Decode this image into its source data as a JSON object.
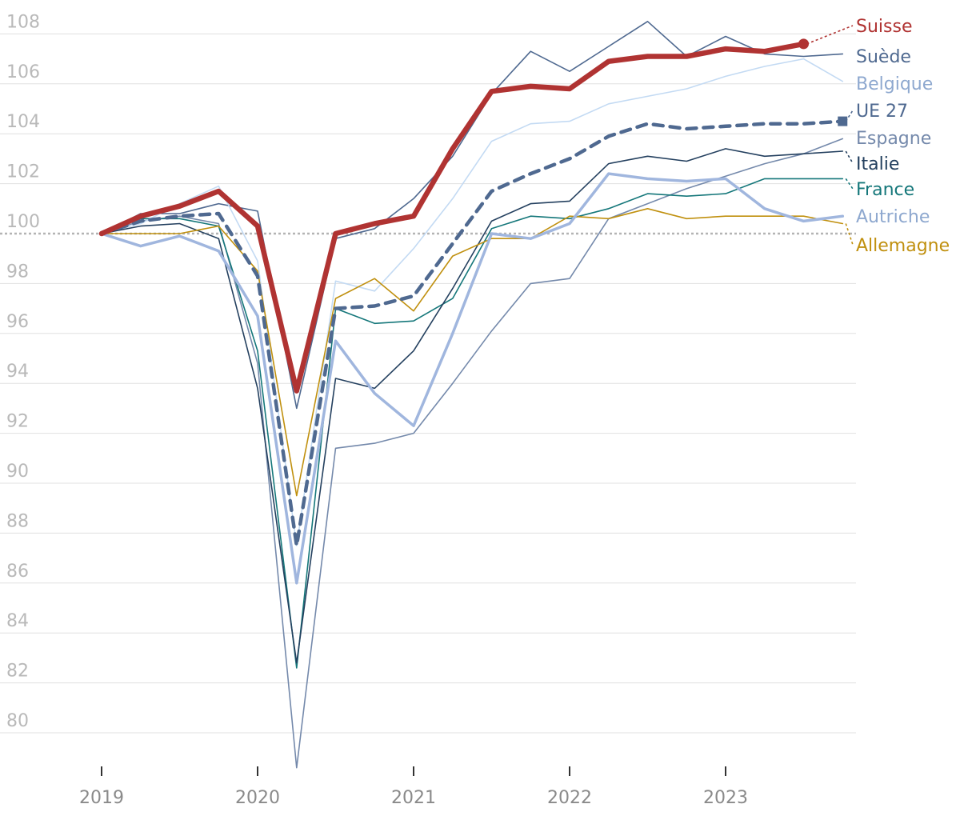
{
  "chart_data": {
    "type": "line",
    "title": "",
    "xlabel": "",
    "ylabel": "",
    "ylim": [
      78.5,
      109
    ],
    "yticks": [
      80,
      82,
      84,
      86,
      88,
      90,
      92,
      94,
      96,
      98,
      100,
      102,
      104,
      106,
      108
    ],
    "x_year_labels": [
      "2019",
      "2020",
      "2021",
      "2022",
      "2023"
    ],
    "x": [
      "2019Q1",
      "2019Q2",
      "2019Q3",
      "2019Q4",
      "2020Q1",
      "2020Q2",
      "2020Q3",
      "2020Q4",
      "2021Q1",
      "2021Q2",
      "2021Q3",
      "2021Q4",
      "2022Q1",
      "2022Q2",
      "2022Q3",
      "2022Q4",
      "2023Q1",
      "2023Q2",
      "2023Q3",
      "2023Q4"
    ],
    "baseline": 100,
    "series": [
      {
        "name": "Espagne",
        "color": "#7489ab",
        "style": "solid",
        "width": 1.6,
        "values": [
          100,
          100.5,
          100.7,
          100.4,
          94.8,
          78.6,
          91.4,
          91.6,
          92.0,
          94.0,
          96.1,
          98.0,
          98.2,
          100.6,
          101.2,
          101.8,
          102.3,
          102.8,
          103.2,
          103.8
        ]
      },
      {
        "name": "Suède",
        "color": "#4f6990",
        "style": "solid",
        "width": 1.6,
        "values": [
          100,
          100.8,
          100.8,
          101.2,
          100.9,
          93.0,
          99.8,
          100.2,
          101.4,
          103.1,
          105.6,
          107.3,
          106.5,
          107.5,
          108.5,
          107.1,
          107.9,
          107.2,
          107.1,
          107.2
        ]
      },
      {
        "name": "Belgique",
        "color": "#c3daf3",
        "style": "solid",
        "width": 1.6,
        "values": [
          100,
          100.4,
          101.2,
          101.9,
          98.9,
          87.5,
          98.1,
          97.7,
          99.4,
          101.4,
          103.7,
          104.4,
          104.5,
          105.2,
          105.5,
          105.8,
          106.3,
          106.7,
          107.0,
          106.1
        ]
      },
      {
        "name": "France",
        "color": "#15777a",
        "style": "solid",
        "width": 1.6,
        "values": [
          100,
          100.6,
          100.6,
          100.3,
          95.3,
          82.6,
          97.0,
          96.4,
          96.5,
          97.4,
          100.2,
          100.7,
          100.6,
          101.0,
          101.6,
          101.5,
          101.6,
          102.2,
          102.2,
          102.2
        ]
      },
      {
        "name": "Italie",
        "color": "#24405f",
        "style": "solid",
        "width": 1.6,
        "values": [
          100,
          100.3,
          100.4,
          99.8,
          93.8,
          82.8,
          94.2,
          93.8,
          95.3,
          97.8,
          100.5,
          101.2,
          101.3,
          102.8,
          103.1,
          102.9,
          103.4,
          103.1,
          103.2,
          103.3
        ]
      },
      {
        "name": "Allemagne",
        "color": "#c0900f",
        "style": "solid",
        "width": 1.6,
        "values": [
          100,
          100.0,
          100.0,
          100.3,
          98.5,
          89.5,
          97.4,
          98.2,
          96.9,
          99.1,
          99.8,
          99.8,
          100.7,
          100.6,
          101.0,
          100.6,
          100.7,
          100.7,
          100.7,
          100.4
        ]
      },
      {
        "name": "Autriche",
        "color": "#a0b6de",
        "style": "solid",
        "width": 3.5,
        "values": [
          100,
          99.5,
          99.9,
          99.3,
          96.7,
          86.0,
          95.7,
          93.6,
          92.3,
          96.0,
          100.0,
          99.8,
          100.4,
          102.4,
          102.2,
          102.1,
          102.2,
          101.0,
          100.5,
          100.7
        ]
      },
      {
        "name": "UE 27",
        "color": "#4f6990",
        "style": "dashed",
        "width": 4.5,
        "values": [
          100,
          100.5,
          100.7,
          100.8,
          98.3,
          87.5,
          97.0,
          97.1,
          97.5,
          99.6,
          101.7,
          102.4,
          103.0,
          103.9,
          104.4,
          104.2,
          104.3,
          104.4,
          104.4,
          104.5
        ]
      },
      {
        "name": "Suisse",
        "color": "#b03332",
        "style": "solid",
        "width": 6.5,
        "values": [
          100,
          100.7,
          101.1,
          101.7,
          100.3,
          93.7,
          100.0,
          100.4,
          100.7,
          103.4,
          105.7,
          105.9,
          105.8,
          106.9,
          107.1,
          107.1,
          107.4,
          107.3,
          107.6,
          null
        ]
      }
    ],
    "legend": [
      {
        "name": "Suisse",
        "color": "#b03332"
      },
      {
        "name": "Suède",
        "color": "#4f6990"
      },
      {
        "name": "Belgique",
        "color": "#8ea8cf"
      },
      {
        "name": "UE 27",
        "color": "#4f6990"
      },
      {
        "name": "Espagne",
        "color": "#7489ab"
      },
      {
        "name": "Italie",
        "color": "#24405f"
      },
      {
        "name": "France",
        "color": "#15777a"
      },
      {
        "name": "Autriche",
        "color": "#8ea8cf"
      },
      {
        "name": "Allemagne",
        "color": "#c0900f"
      }
    ],
    "legend_placement": "right",
    "grid": true
  }
}
